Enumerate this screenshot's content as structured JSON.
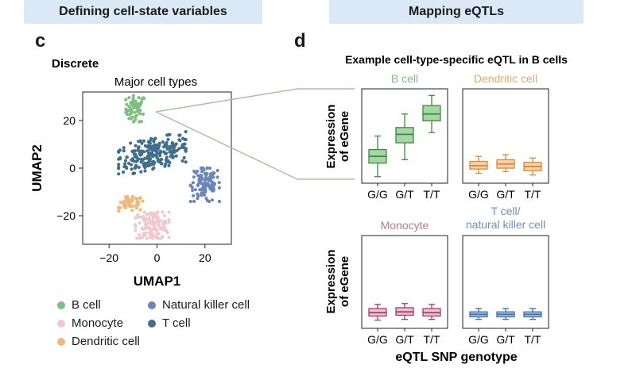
{
  "header": {
    "left_title": "Defining cell-state variables",
    "right_title": "Mapping eQTLs"
  },
  "panel_c": {
    "letter": "c",
    "subtitle": "Discrete",
    "plot_title": "Major cell types"
  },
  "panel_d": {
    "letter": "d",
    "title": "Example cell-type-specific eQTL in B cells",
    "ylabel_line1": "Expression",
    "ylabel_line2": "of eGene",
    "xlabel": "eQTL SNP genotype"
  },
  "legend": [
    {
      "label": "B cell",
      "color": "#7dbf7d"
    },
    {
      "label": "Natural killer cell",
      "color": "#6a86b8"
    },
    {
      "label": "Monocyte",
      "color": "#f0c8cf"
    },
    {
      "label": "T cell",
      "color": "#3f6f8a"
    },
    {
      "label": "Dendritic cell",
      "color": "#f1b77a"
    }
  ],
  "chart_data": [
    {
      "type": "scatter",
      "title": "Major cell types",
      "xlabel": "UMAP1",
      "ylabel": "UMAP2",
      "xlim": [
        -31,
        31
      ],
      "ylim": [
        -32,
        32
      ],
      "xticks": [
        -20,
        0,
        20
      ],
      "yticks": [
        -20,
        0,
        20
      ],
      "series": [
        {
          "name": "B cell",
          "color": "#7dbf7d",
          "center": [
            -9,
            25
          ],
          "spread": [
            4,
            5.5
          ],
          "count": 60
        },
        {
          "name": "T cell",
          "color": "#3f6f8a",
          "center": [
            -2,
            6
          ],
          "spread": [
            14,
            6.5
          ],
          "count": 240
        },
        {
          "name": "Natural killer cell",
          "color": "#6a86b8",
          "center": [
            20,
            -7
          ],
          "spread": [
            6,
            7
          ],
          "count": 110
        },
        {
          "name": "Dendritic cell",
          "color": "#f1b77a",
          "center": [
            -11,
            -15
          ],
          "spread": [
            5,
            3
          ],
          "count": 50
        },
        {
          "name": "Monocyte",
          "color": "#f0c8cf",
          "center": [
            -2,
            -24
          ],
          "spread": [
            7,
            5.5
          ],
          "count": 130
        }
      ]
    },
    {
      "type": "box",
      "categories": [
        "G/G",
        "G/T",
        "T/T"
      ],
      "panels": [
        {
          "title": "B cell",
          "title_color": "#7dbf7d",
          "fill": "#a6d5a6",
          "stroke": "#3d8a3d",
          "boxes": [
            {
              "min": 2,
              "q1": 10,
              "median": 14,
              "q3": 18,
              "max": 26
            },
            {
              "min": 12,
              "q1": 22,
              "median": 27,
              "q3": 31,
              "max": 39
            },
            {
              "min": 28,
              "q1": 35,
              "median": 39,
              "q3": 44,
              "max": 50
            }
          ]
        },
        {
          "title": "Dendritic cell",
          "title_color": "#e8a868",
          "fill": "#f9d2a6",
          "stroke": "#d8893a",
          "boxes": [
            {
              "min": 4,
              "q1": 6.5,
              "median": 8.5,
              "q3": 11,
              "max": 14
            },
            {
              "min": 5,
              "q1": 7,
              "median": 9.5,
              "q3": 12,
              "max": 15
            },
            {
              "min": 3,
              "q1": 5.5,
              "median": 8,
              "q3": 10.5,
              "max": 13
            }
          ]
        },
        {
          "title": "Monocyte",
          "title_color": "#b87a92",
          "fill": "#f0c1d0",
          "stroke": "#a23d69",
          "boxes": [
            {
              "min": 3,
              "q1": 5.5,
              "median": 7.5,
              "q3": 10,
              "max": 12.5
            },
            {
              "min": 3.5,
              "q1": 6,
              "median": 8,
              "q3": 10.5,
              "max": 13
            },
            {
              "min": 3.5,
              "q1": 5.5,
              "median": 7.5,
              "q3": 10,
              "max": 12.5
            }
          ]
        },
        {
          "title": "T cell/",
          "title2": "natural killer cell",
          "title_color": "#6a8fc6",
          "fill": "#a9c6ec",
          "stroke": "#3f6fa8",
          "boxes": [
            {
              "min": 3.5,
              "q1": 5,
              "median": 6.5,
              "q3": 8,
              "max": 10
            },
            {
              "min": 3.5,
              "q1": 5,
              "median": 6.5,
              "q3": 8,
              "max": 10
            },
            {
              "min": 3.5,
              "q1": 5,
              "median": 6.5,
              "q3": 8,
              "max": 10
            }
          ]
        }
      ]
    }
  ]
}
